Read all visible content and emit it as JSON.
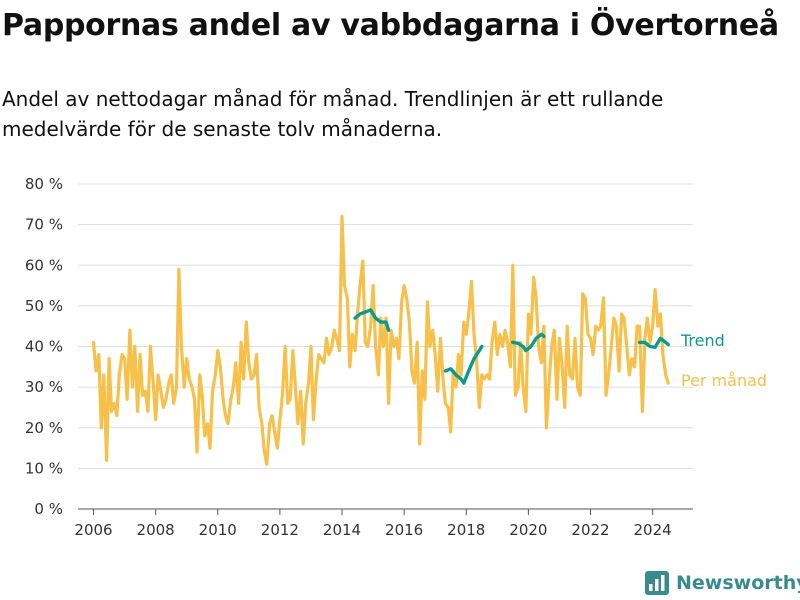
{
  "title": "Pappornas andel av vabbdagarna i Övertorneå",
  "subtitle": "Andel av nettodagar månad för månad. Trendlinjen är ett rullande medelvärde för de senaste tolv månaderna.",
  "brand": {
    "name": "Newsworthy",
    "color": "#3a8c8b"
  },
  "chart_data": {
    "type": "line",
    "title": "",
    "xlabel": "",
    "ylabel": "",
    "xlim": [
      2005.5,
      2025.3
    ],
    "ylim": [
      0,
      80
    ],
    "grid": true,
    "x_ticks": [
      2006,
      2008,
      2010,
      2012,
      2014,
      2016,
      2018,
      2020,
      2022,
      2024
    ],
    "x_tick_labels": [
      "2006",
      "2008",
      "2010",
      "2012",
      "2014",
      "2016",
      "2018",
      "2020",
      "2022",
      "2024"
    ],
    "y_ticks": [
      0,
      10,
      20,
      30,
      40,
      50,
      60,
      70,
      80
    ],
    "y_tick_labels": [
      "0 %",
      "10 %",
      "20 %",
      "30 %",
      "40 %",
      "50 %",
      "60 %",
      "70 %",
      "80 %"
    ],
    "series": [
      {
        "name": "Per månad",
        "color": "#f7c04a",
        "points": [
          [
            2006.0,
            41
          ],
          [
            2006.08,
            34
          ],
          [
            2006.17,
            38
          ],
          [
            2006.25,
            20
          ],
          [
            2006.33,
            33
          ],
          [
            2006.42,
            12
          ],
          [
            2006.5,
            37
          ],
          [
            2006.58,
            24
          ],
          [
            2006.67,
            26
          ],
          [
            2006.75,
            23
          ],
          [
            2006.83,
            33
          ],
          [
            2006.92,
            38
          ],
          [
            2007.0,
            37
          ],
          [
            2007.08,
            27
          ],
          [
            2007.17,
            44
          ],
          [
            2007.25,
            30
          ],
          [
            2007.33,
            40
          ],
          [
            2007.42,
            24
          ],
          [
            2007.5,
            38
          ],
          [
            2007.58,
            28
          ],
          [
            2007.67,
            29
          ],
          [
            2007.75,
            24
          ],
          [
            2007.83,
            40
          ],
          [
            2007.92,
            31
          ],
          [
            2008.0,
            22
          ],
          [
            2008.08,
            33
          ],
          [
            2008.17,
            29
          ],
          [
            2008.25,
            25
          ],
          [
            2008.33,
            27
          ],
          [
            2008.42,
            31
          ],
          [
            2008.5,
            33
          ],
          [
            2008.58,
            26
          ],
          [
            2008.67,
            30
          ],
          [
            2008.75,
            59
          ],
          [
            2008.83,
            40
          ],
          [
            2008.92,
            30
          ],
          [
            2009.0,
            37
          ],
          [
            2009.08,
            32
          ],
          [
            2009.17,
            30
          ],
          [
            2009.25,
            27
          ],
          [
            2009.33,
            14
          ],
          [
            2009.42,
            33
          ],
          [
            2009.5,
            28
          ],
          [
            2009.58,
            18
          ],
          [
            2009.67,
            21
          ],
          [
            2009.75,
            15
          ],
          [
            2009.83,
            29
          ],
          [
            2009.92,
            33
          ],
          [
            2010.0,
            39
          ],
          [
            2010.08,
            35
          ],
          [
            2010.17,
            27
          ],
          [
            2010.25,
            23
          ],
          [
            2010.33,
            21
          ],
          [
            2010.42,
            27
          ],
          [
            2010.5,
            30
          ],
          [
            2010.58,
            36
          ],
          [
            2010.67,
            26
          ],
          [
            2010.75,
            41
          ],
          [
            2010.83,
            32
          ],
          [
            2010.92,
            46
          ],
          [
            2011.0,
            36
          ],
          [
            2011.08,
            32
          ],
          [
            2011.17,
            33
          ],
          [
            2011.25,
            38
          ],
          [
            2011.33,
            25
          ],
          [
            2011.42,
            21
          ],
          [
            2011.5,
            14
          ],
          [
            2011.58,
            11
          ],
          [
            2011.67,
            21
          ],
          [
            2011.75,
            23
          ],
          [
            2011.83,
            19
          ],
          [
            2011.92,
            15
          ],
          [
            2012.0,
            22
          ],
          [
            2012.08,
            28
          ],
          [
            2012.17,
            40
          ],
          [
            2012.25,
            26
          ],
          [
            2012.33,
            27
          ],
          [
            2012.42,
            39
          ],
          [
            2012.5,
            30
          ],
          [
            2012.58,
            21
          ],
          [
            2012.67,
            29
          ],
          [
            2012.75,
            16
          ],
          [
            2012.83,
            26
          ],
          [
            2012.92,
            31
          ],
          [
            2013.0,
            40
          ],
          [
            2013.08,
            22
          ],
          [
            2013.17,
            32
          ],
          [
            2013.25,
            38
          ],
          [
            2013.33,
            37
          ],
          [
            2013.42,
            36
          ],
          [
            2013.5,
            42
          ],
          [
            2013.58,
            38
          ],
          [
            2013.67,
            40
          ],
          [
            2013.75,
            44
          ],
          [
            2013.83,
            42
          ],
          [
            2013.92,
            39
          ],
          [
            2014.0,
            72
          ],
          [
            2014.08,
            55
          ],
          [
            2014.17,
            52
          ],
          [
            2014.25,
            35
          ],
          [
            2014.33,
            43
          ],
          [
            2014.42,
            39
          ],
          [
            2014.5,
            48
          ],
          [
            2014.58,
            55
          ],
          [
            2014.67,
            61
          ],
          [
            2014.75,
            41
          ],
          [
            2014.83,
            40
          ],
          [
            2014.92,
            45
          ],
          [
            2015.0,
            55
          ],
          [
            2015.08,
            40
          ],
          [
            2015.17,
            33
          ],
          [
            2015.25,
            47
          ],
          [
            2015.33,
            40
          ],
          [
            2015.42,
            47
          ],
          [
            2015.5,
            26
          ],
          [
            2015.58,
            44
          ],
          [
            2015.67,
            40
          ],
          [
            2015.75,
            42
          ],
          [
            2015.83,
            37
          ],
          [
            2015.92,
            51
          ],
          [
            2016.0,
            55
          ],
          [
            2016.08,
            52
          ],
          [
            2016.17,
            46
          ],
          [
            2016.25,
            34
          ],
          [
            2016.33,
            31
          ],
          [
            2016.42,
            41
          ],
          [
            2016.5,
            16
          ],
          [
            2016.58,
            34
          ],
          [
            2016.67,
            27
          ],
          [
            2016.75,
            51
          ],
          [
            2016.83,
            40
          ],
          [
            2016.92,
            44
          ],
          [
            2017.0,
            38
          ],
          [
            2017.08,
            29
          ],
          [
            2017.17,
            42
          ],
          [
            2017.25,
            32
          ],
          [
            2017.33,
            26
          ],
          [
            2017.42,
            25
          ],
          [
            2017.5,
            19
          ],
          [
            2017.58,
            34
          ],
          [
            2017.67,
            30
          ],
          [
            2017.75,
            38
          ],
          [
            2017.83,
            33
          ],
          [
            2017.92,
            46
          ],
          [
            2018.0,
            43
          ],
          [
            2018.08,
            48
          ],
          [
            2018.17,
            56
          ],
          [
            2018.25,
            43
          ],
          [
            2018.33,
            37
          ],
          [
            2018.42,
            25
          ],
          [
            2018.5,
            33
          ],
          [
            2018.58,
            32
          ],
          [
            2018.67,
            33
          ],
          [
            2018.75,
            32
          ],
          [
            2018.83,
            41
          ],
          [
            2018.92,
            46
          ],
          [
            2019.0,
            38
          ],
          [
            2019.08,
            43
          ],
          [
            2019.17,
            40
          ],
          [
            2019.25,
            44
          ],
          [
            2019.33,
            41
          ],
          [
            2019.42,
            35
          ],
          [
            2019.5,
            60
          ],
          [
            2019.58,
            28
          ],
          [
            2019.67,
            30
          ],
          [
            2019.75,
            41
          ],
          [
            2019.83,
            30
          ],
          [
            2019.92,
            24
          ],
          [
            2020.0,
            48
          ],
          [
            2020.08,
            43
          ],
          [
            2020.17,
            57
          ],
          [
            2020.25,
            52
          ],
          [
            2020.33,
            40
          ],
          [
            2020.42,
            36
          ],
          [
            2020.5,
            45
          ],
          [
            2020.58,
            20
          ],
          [
            2020.67,
            32
          ],
          [
            2020.75,
            40
          ],
          [
            2020.83,
            44
          ],
          [
            2020.92,
            27
          ],
          [
            2021.0,
            42
          ],
          [
            2021.08,
            36
          ],
          [
            2021.17,
            25
          ],
          [
            2021.25,
            45
          ],
          [
            2021.33,
            33
          ],
          [
            2021.42,
            32
          ],
          [
            2021.5,
            42
          ],
          [
            2021.58,
            30
          ],
          [
            2021.67,
            28
          ],
          [
            2021.75,
            53
          ],
          [
            2021.83,
            52
          ],
          [
            2021.92,
            43
          ],
          [
            2022.0,
            42
          ],
          [
            2022.08,
            38
          ],
          [
            2022.17,
            45
          ],
          [
            2022.25,
            44
          ],
          [
            2022.33,
            45
          ],
          [
            2022.42,
            52
          ],
          [
            2022.5,
            28
          ],
          [
            2022.58,
            33
          ],
          [
            2022.67,
            40
          ],
          [
            2022.75,
            47
          ],
          [
            2022.83,
            45
          ],
          [
            2022.92,
            34
          ],
          [
            2023.0,
            48
          ],
          [
            2023.08,
            47
          ],
          [
            2023.17,
            40
          ],
          [
            2023.25,
            33
          ],
          [
            2023.33,
            37
          ],
          [
            2023.42,
            35
          ],
          [
            2023.5,
            45
          ],
          [
            2023.58,
            45
          ],
          [
            2023.67,
            24
          ],
          [
            2023.75,
            42
          ],
          [
            2023.83,
            47
          ],
          [
            2023.92,
            41
          ],
          [
            2024.0,
            45
          ],
          [
            2024.08,
            54
          ],
          [
            2024.17,
            45
          ],
          [
            2024.25,
            48
          ],
          [
            2024.33,
            38
          ],
          [
            2024.42,
            33
          ],
          [
            2024.5,
            31
          ]
        ]
      },
      {
        "name": "Trend",
        "color": "#0d9a8a",
        "segments": [
          [
            [
              2014.42,
              47
            ],
            [
              2014.58,
              48
            ],
            [
              2014.75,
              48.5
            ],
            [
              2014.92,
              49
            ],
            [
              2015.08,
              47
            ],
            [
              2015.25,
              46
            ],
            [
              2015.42,
              46
            ],
            [
              2015.5,
              44
            ]
          ],
          [
            [
              2017.33,
              34
            ],
            [
              2017.5,
              34.5
            ],
            [
              2017.67,
              33
            ],
            [
              2017.83,
              32
            ],
            [
              2017.92,
              31
            ],
            [
              2018.08,
              34
            ],
            [
              2018.25,
              37
            ],
            [
              2018.42,
              39
            ],
            [
              2018.5,
              40
            ]
          ],
          [
            [
              2019.5,
              41
            ],
            [
              2019.67,
              40.8
            ],
            [
              2019.83,
              40
            ],
            [
              2019.92,
              39
            ],
            [
              2020.08,
              40
            ],
            [
              2020.25,
              42
            ],
            [
              2020.42,
              43
            ],
            [
              2020.5,
              42.5
            ]
          ],
          [
            [
              2023.58,
              41
            ],
            [
              2023.75,
              41
            ],
            [
              2023.92,
              40
            ],
            [
              2024.08,
              39.8
            ],
            [
              2024.25,
              42
            ],
            [
              2024.42,
              41
            ],
            [
              2024.5,
              40.5
            ]
          ]
        ]
      }
    ],
    "legend": {
      "placement": "right, inline at line ends",
      "entries": [
        "Trend",
        "Per månad"
      ]
    }
  }
}
